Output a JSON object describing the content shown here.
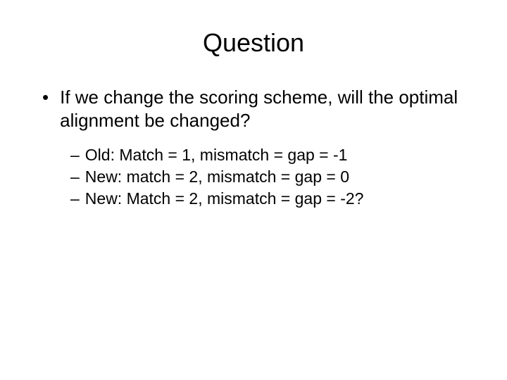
{
  "slide": {
    "title": "Question",
    "title_fontsize": 36,
    "main_bullet": {
      "marker": "•",
      "text": "If we change the scoring scheme, will the optimal alignment be changed?"
    },
    "sub_bullets": [
      {
        "marker": "–",
        "text": "Old: Match = 1, mismatch = gap = -1"
      },
      {
        "marker": "–",
        "text": "New: match = 2, mismatch = gap = 0"
      },
      {
        "marker": "–",
        "text": "New: Match = 2, mismatch = gap = -2?"
      }
    ],
    "body_fontsize": 26,
    "sub_fontsize": 23,
    "text_color": "#000000",
    "background_color": "#ffffff"
  }
}
